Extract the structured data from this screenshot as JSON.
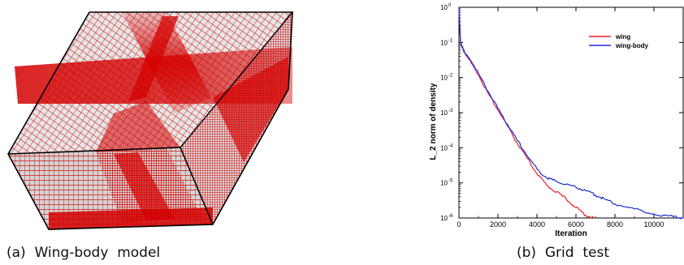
{
  "panel_a": {
    "caption": "(a)  Wing-body  model",
    "colors": {
      "mesh": "#d40000",
      "face": "#cfcfcf",
      "edge": "#000000"
    }
  },
  "panel_b": {
    "caption": "(b)  Grid  test"
  },
  "chart_data": {
    "type": "line",
    "xlabel": "Iteration",
    "ylabel": "L_2 norm of density",
    "xlim": [
      0,
      11500
    ],
    "ylim_log10": [
      -6,
      0
    ],
    "yscale": "log",
    "x_ticks": [
      0,
      2000,
      4000,
      6000,
      8000,
      10000
    ],
    "y_ticks": [
      {
        "exp": 0,
        "base": "10",
        "power": "0"
      },
      {
        "exp": -1,
        "base": "10",
        "power": "-1"
      },
      {
        "exp": -2,
        "base": "10",
        "power": "-2"
      },
      {
        "exp": -3,
        "base": "10",
        "power": "-3"
      },
      {
        "exp": -4,
        "base": "10",
        "power": "-4"
      },
      {
        "exp": -5,
        "base": "10",
        "power": "-5"
      },
      {
        "exp": -6,
        "base": "10",
        "power": "-6"
      }
    ],
    "legend_position": "top-right",
    "series": [
      {
        "name": "wing",
        "color": "#e8202a",
        "x": [
          0,
          80,
          300,
          600,
          1000,
          1500,
          2000,
          2500,
          3000,
          3500,
          4000,
          4500,
          5000,
          5500,
          6000,
          6500,
          6900
        ],
        "y": [
          0.9,
          0.1,
          0.05,
          0.03,
          0.012,
          0.0035,
          0.0012,
          0.0004,
          0.00013,
          5e-05,
          1.8e-05,
          8.5e-06,
          5.5e-06,
          3.5e-06,
          2e-06,
          1.2e-06,
          1e-06
        ]
      },
      {
        "name": "wing-body",
        "color": "#1a2fcc",
        "x": [
          0,
          80,
          300,
          600,
          1000,
          1500,
          2000,
          2500,
          3000,
          3500,
          4000,
          4500,
          5000,
          5500,
          6000,
          6500,
          7000,
          7500,
          8000,
          9000,
          10000,
          11000,
          11500
        ],
        "y": [
          0.9,
          0.1,
          0.05,
          0.03,
          0.013,
          0.004,
          0.0013,
          0.00045,
          0.00016,
          6e-05,
          2.5e-05,
          1.4e-05,
          1.1e-05,
          9e-06,
          7.5e-06,
          6e-06,
          4.5e-06,
          3.4e-06,
          2.5e-06,
          1.8e-06,
          1.3e-06,
          1.1e-06,
          1e-06
        ]
      }
    ]
  }
}
